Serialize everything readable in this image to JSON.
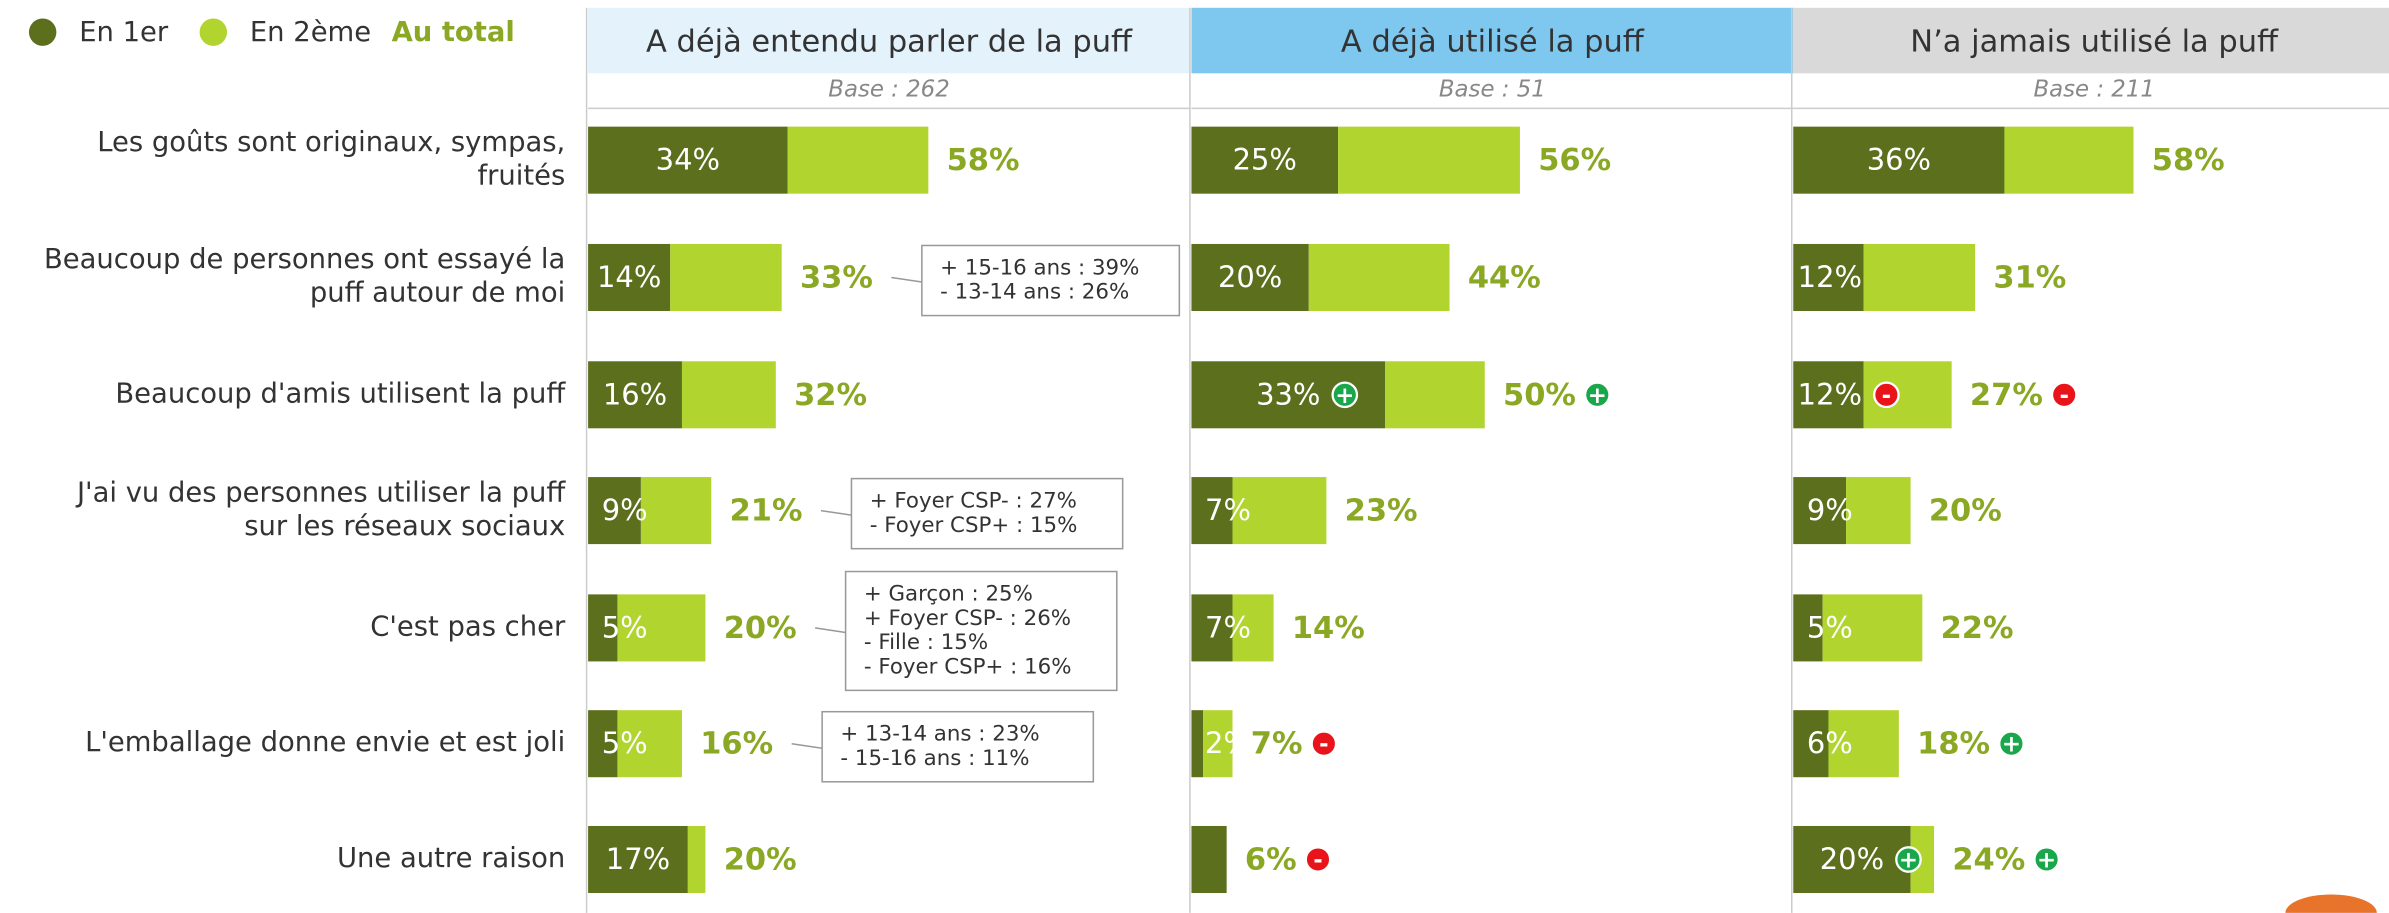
{
  "chart_data": {
    "type": "bar",
    "orientation": "horizontal",
    "stacked": true,
    "legend": {
      "series": [
        {
          "name": "En 1er",
          "color": "#5b6f1c"
        },
        {
          "name": "En 2ème",
          "color": "#b1d42f"
        }
      ],
      "total": {
        "name": "Au total",
        "color": "#8aa823"
      }
    },
    "categories": [
      [
        "Les goûts sont originaux, sympas,",
        "fruités"
      ],
      [
        "Beaucoup de personnes ont essayé la",
        "puff autour de moi"
      ],
      [
        "Beaucoup d'amis utilisent la puff"
      ],
      [
        "J'ai vu des personnes utiliser la puff",
        "sur les réseaux sociaux"
      ],
      [
        "C'est pas cher"
      ],
      [
        "L'emballage donne envie et est joli"
      ],
      [
        "Une autre raison"
      ]
    ],
    "panels": [
      {
        "title": "A déjà entendu parler de la puff",
        "header_color": "#e3f2fb",
        "base": "Base : 262",
        "series": [
          {
            "values": [
              34,
              14,
              16,
              9,
              5,
              5,
              17
            ],
            "value_labels": [
              "34%",
              "14%",
              "16%",
              "9%",
              "5%",
              "5%",
              "17%"
            ]
          },
          {
            "values": [
              24,
              19,
              16,
              12,
              15,
              11,
              3
            ]
          }
        ],
        "totals": [
          58,
          33,
          32,
          21,
          20,
          16,
          20
        ],
        "total_labels": [
          "58%",
          "33%",
          "32%",
          "21%",
          "20%",
          "16%",
          "20%"
        ],
        "markers": [
          null,
          null,
          null,
          null,
          null,
          null,
          null
        ],
        "annotations": [
          null,
          [
            "+ 15-16 ans : 39%",
            "-  13-14 ans : 26%"
          ],
          null,
          [
            "+ Foyer CSP- : 27%",
            "-  Foyer CSP+ : 15%"
          ],
          [
            "+ Garçon : 25%",
            "+ Foyer CSP- : 26%",
            "-  Fille : 15%",
            "-  Foyer CSP+ : 16%"
          ],
          [
            "+ 13-14 ans : 23%",
            "-  15-16 ans : 11%"
          ],
          null
        ]
      },
      {
        "title": "A déjà utilisé la puff",
        "header_color": "#7ec8f0",
        "base": "Base : 51",
        "series": [
          {
            "values": [
              25,
              20,
              33,
              7,
              7,
              2,
              6
            ],
            "value_labels": [
              "25%",
              "20%",
              "33%",
              "7%",
              "7%",
              "2%",
              null
            ]
          },
          {
            "values": [
              31,
              24,
              17,
              16,
              7,
              5,
              0
            ]
          }
        ],
        "totals": [
          56,
          44,
          50,
          23,
          14,
          7,
          6
        ],
        "total_labels": [
          "56%",
          "44%",
          "50%",
          "23%",
          "14%",
          "7%",
          "6%"
        ],
        "markers": [
          null,
          null,
          {
            "segment": "+",
            "total": "+"
          },
          null,
          null,
          {
            "total": "-"
          },
          {
            "total": "-"
          }
        ],
        "annotations": [
          null,
          null,
          null,
          null,
          null,
          null,
          null
        ]
      },
      {
        "title": "N’a jamais utilisé la puff",
        "header_color": "#d9d9d9",
        "base": "Base : 211",
        "series": [
          {
            "values": [
              36,
              12,
              12,
              9,
              5,
              6,
              20
            ],
            "value_labels": [
              "36%",
              "12%",
              "12%",
              "9%",
              "5%",
              "6%",
              "20%"
            ]
          },
          {
            "values": [
              22,
              19,
              15,
              11,
              17,
              12,
              4
            ]
          }
        ],
        "totals": [
          58,
          31,
          27,
          20,
          22,
          18,
          24
        ],
        "total_labels": [
          "58%",
          "31%",
          "27%",
          "20%",
          "22%",
          "18%",
          "24%"
        ],
        "markers": [
          null,
          null,
          {
            "segment": "-",
            "total": "-"
          },
          null,
          null,
          {
            "total": "+"
          },
          {
            "segment": "+",
            "total": "+"
          }
        ],
        "annotations": [
          null,
          null,
          null,
          null,
          null,
          null,
          null
        ]
      }
    ]
  }
}
